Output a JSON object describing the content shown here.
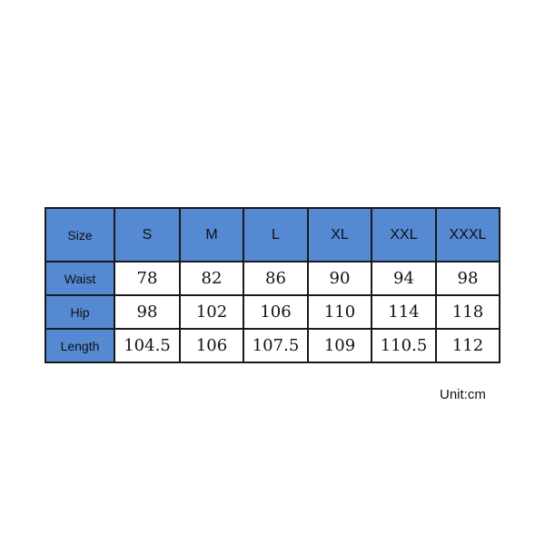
{
  "table": {
    "header_label": "Size",
    "sizes": [
      "S",
      "M",
      "L",
      "XL",
      "XXL",
      "XXXL"
    ],
    "rows": [
      {
        "label": "Waist",
        "values": [
          "78",
          "82",
          "86",
          "90",
          "94",
          "98"
        ]
      },
      {
        "label": "Hip",
        "values": [
          "98",
          "102",
          "106",
          "110",
          "114",
          "118"
        ]
      },
      {
        "label": "Length",
        "values": [
          "104.5",
          "106",
          "107.5",
          "109",
          "110.5",
          "112"
        ]
      }
    ],
    "header_color": "#5589d2"
  },
  "unit_note": "Unit:cm"
}
